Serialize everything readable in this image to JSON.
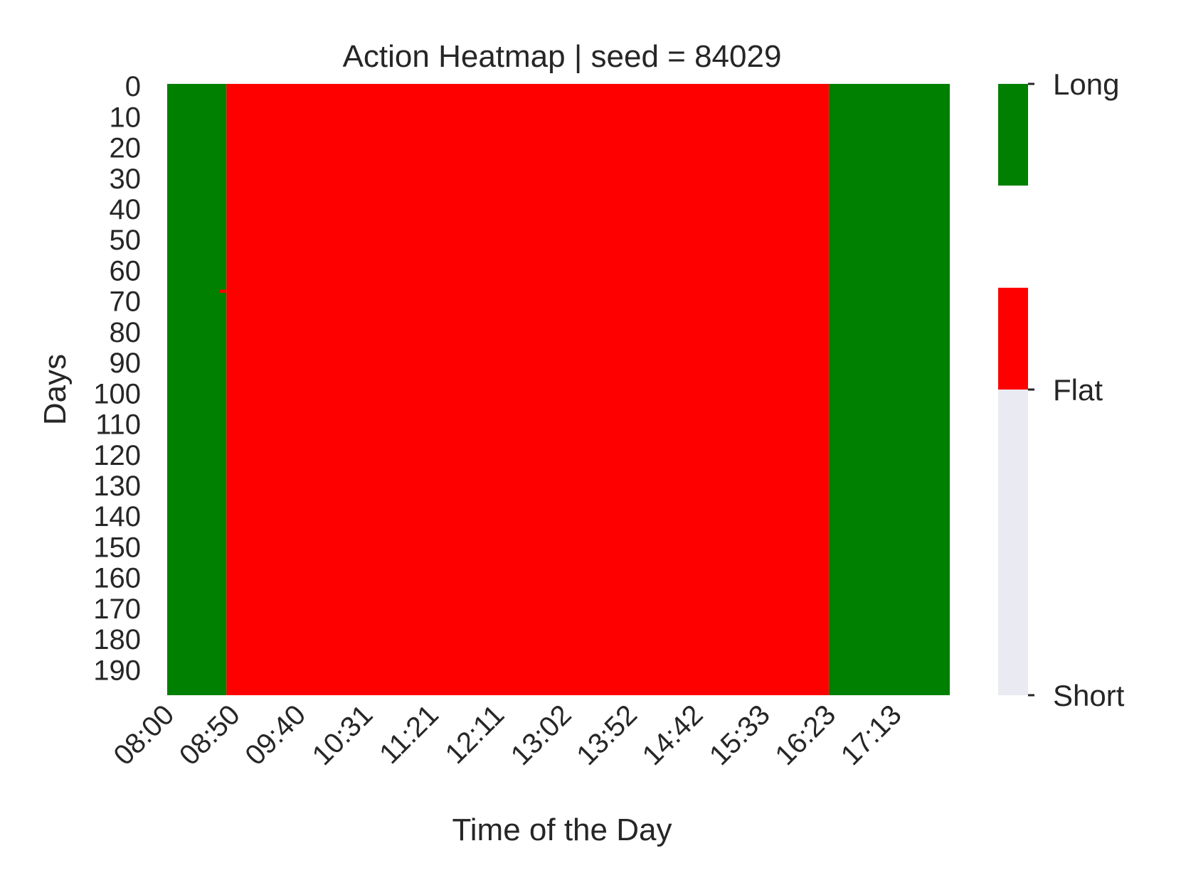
{
  "chart_data": {
    "type": "heatmap",
    "title": "Action Heatmap | seed = 84029",
    "xlabel": "Time of the Day",
    "ylabel": "Days",
    "x_tick_labels": [
      "08:00",
      "08:50",
      "09:40",
      "10:31",
      "11:21",
      "12:11",
      "13:02",
      "13:52",
      "14:42",
      "15:33",
      "16:23",
      "17:13"
    ],
    "y_tick_labels": [
      "0",
      "10",
      "20",
      "30",
      "40",
      "50",
      "60",
      "70",
      "80",
      "90",
      "100",
      "110",
      "120",
      "130",
      "140",
      "150",
      "160",
      "170",
      "180",
      "190"
    ],
    "n_days": 199,
    "day_range": [
      0,
      198
    ],
    "time_range": [
      "08:00",
      "17:55"
    ],
    "actions": [
      "Short",
      "Flat",
      "Long"
    ],
    "action_colors": {
      "Long": "#008000",
      "Flat": "#ff0000",
      "Short": "#eaeaf2"
    },
    "regions": [
      {
        "time_start": "08:00",
        "time_end": "08:45",
        "days": [
          0,
          198
        ],
        "action": "Long"
      },
      {
        "time_start": "08:45",
        "time_end": "16:23",
        "days": [
          0,
          198
        ],
        "action": "Flat"
      },
      {
        "time_start": "16:23",
        "time_end": "17:55",
        "days": [
          0,
          198
        ],
        "action": "Long"
      }
    ],
    "anomalies": [
      {
        "day": 67,
        "time": "08:40",
        "action": "Flat"
      }
    ],
    "colorbar": {
      "ticks": [
        {
          "value": 1,
          "label": "Long"
        },
        {
          "value": 0,
          "label": "Flat"
        },
        {
          "value": -1,
          "label": "Short"
        }
      ],
      "range": [
        -1,
        1
      ],
      "segments": [
        {
          "from": 0.667,
          "to": 1.0,
          "color": "#008000"
        },
        {
          "from": 0.333,
          "to": 0.667,
          "color": "#ffffff"
        },
        {
          "from": 0.0,
          "to": 0.333,
          "color": "#ff0000"
        },
        {
          "from": -1.0,
          "to": 0.0,
          "color": "#eaeaf2"
        }
      ]
    },
    "grid": false
  }
}
